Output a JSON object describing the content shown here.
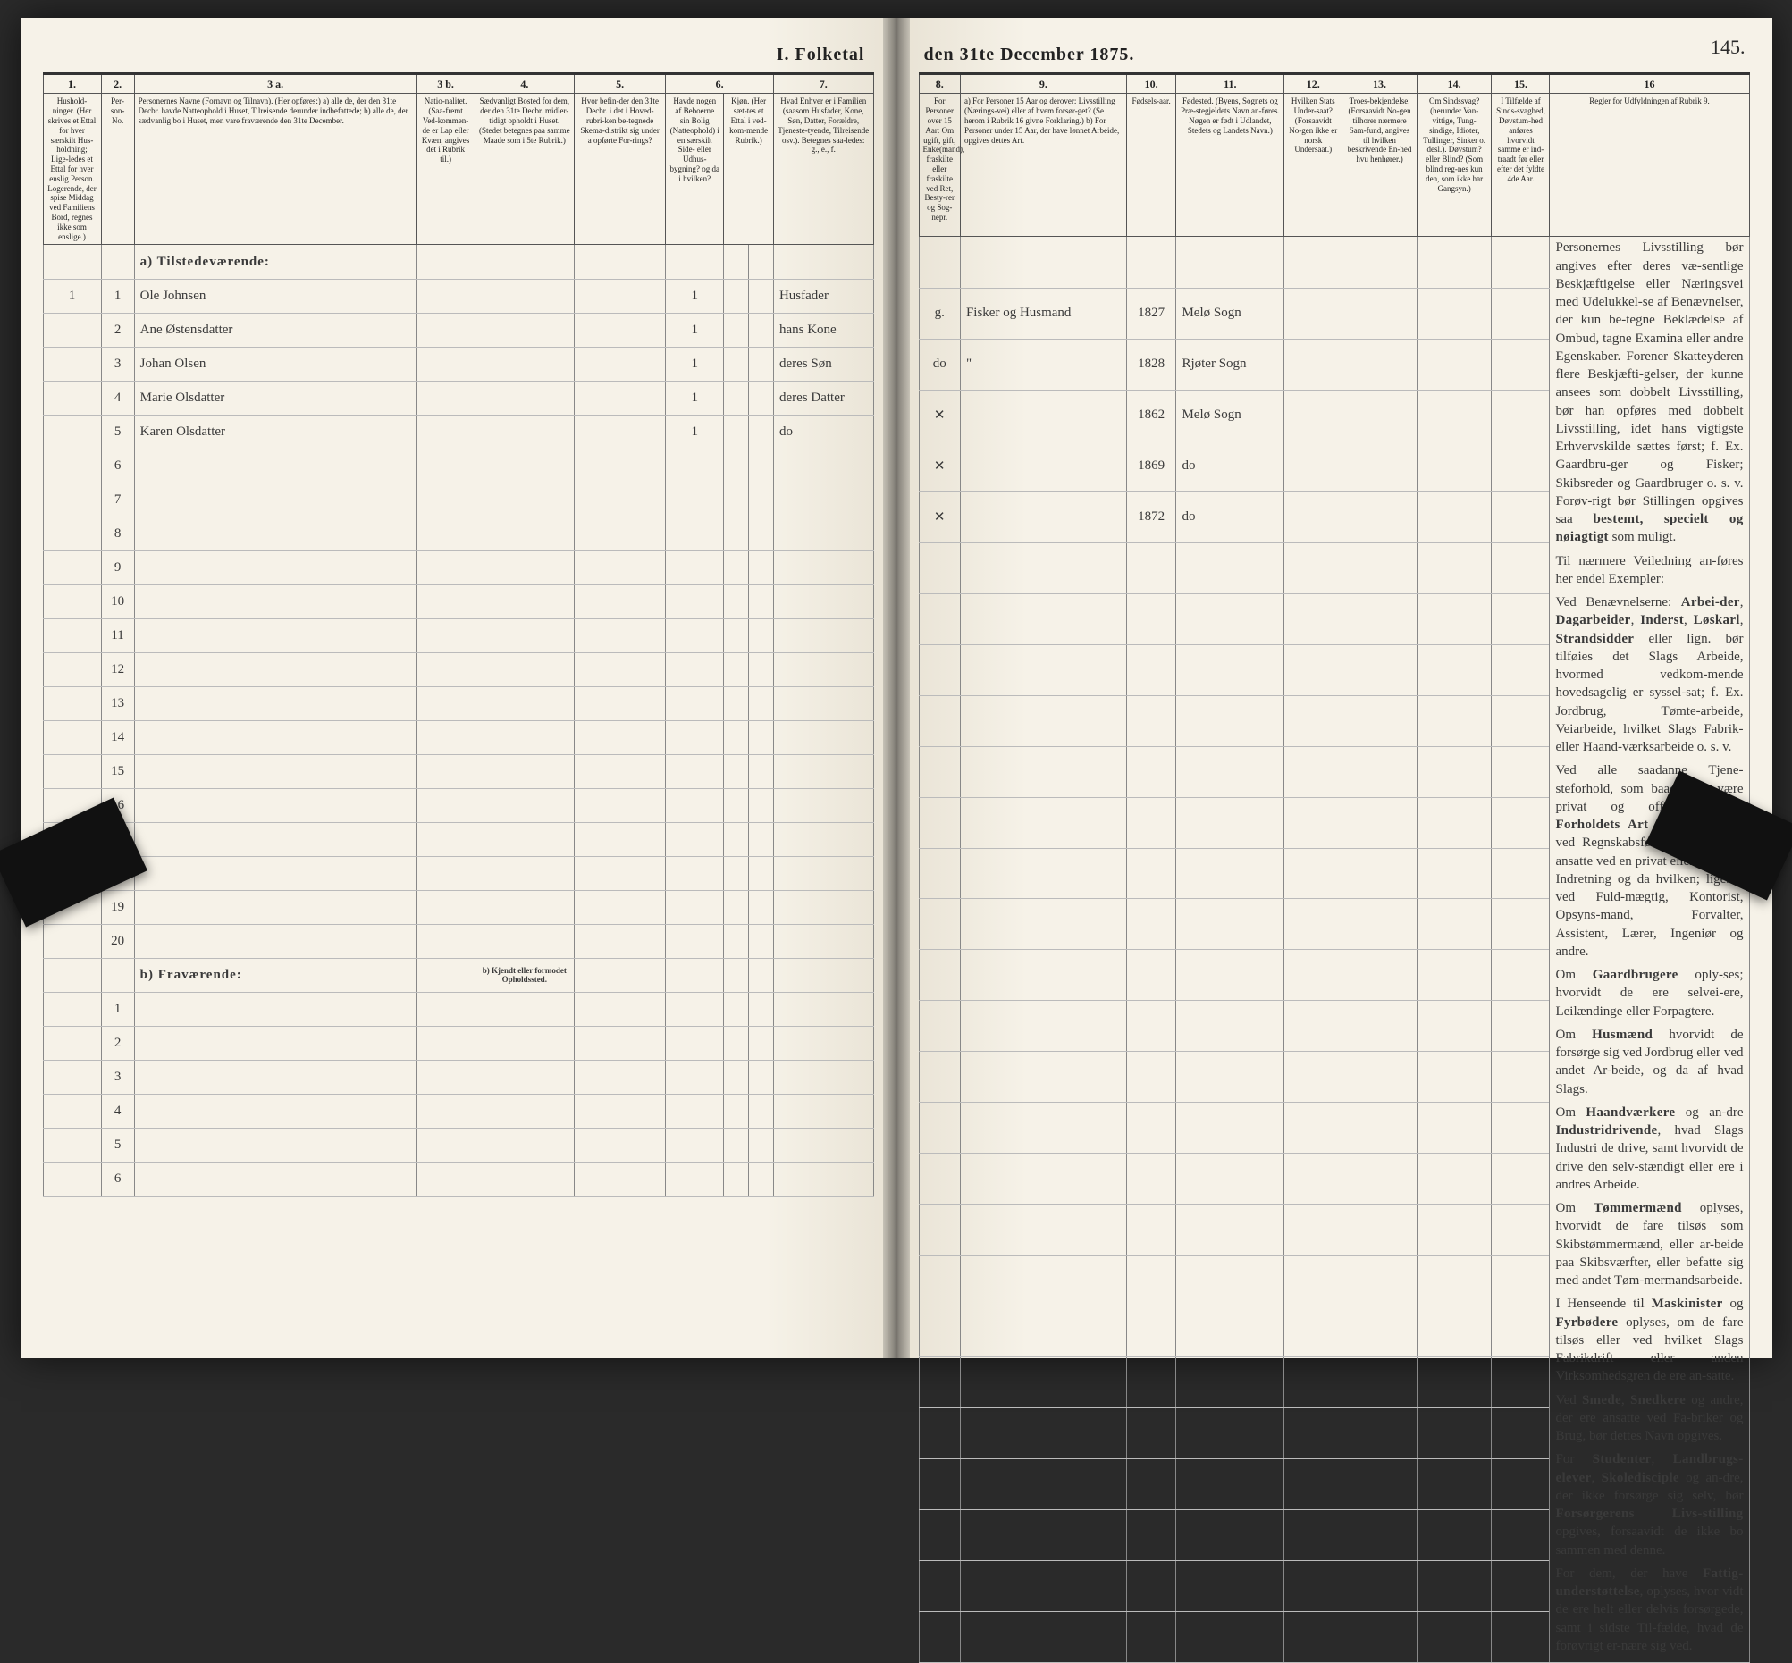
{
  "title_left": "I.  Folketal",
  "title_right": "den 31te December 1875.",
  "page_number": "145.",
  "left_columns": {
    "nums": [
      "1.",
      "2.",
      "3 a.",
      "3 b.",
      "4.",
      "5.",
      "6.",
      "7.",
      "8."
    ],
    "heads": [
      "Hushold-ninger. (Her skrives et Ettal for hver særskilt Hus-holdning; Lige-ledes et Ettal for hver enslig Person. Logerende, der spise Middag ved Familiens Bord, regnes ikke som enslige.)",
      "Per-son-No.",
      "Personernes Navne (Fornavn og Tilnavn).\n(Her opføres:)\na) alle de, der den 31te Decbr. havde Natteophold i Huset, Tilreisende derunder indbefattede;\nb) alle de, der sædvanlig bo i Huset, men vare fraværende den 31te December.",
      "Natio-nalitet. (Saa-fremt Ved-kommen-de er Lap eller Kvæn, angives det i Rubrik til.)",
      "Sædvanligt Bosted for dem, der den 31te Decbr. midler-tidigt opholdt i Huset. (Stedet betegnes paa samme Maade som i 5te Rubrik.)",
      "Hvor befin-der den 31te Decbr. i det i Hoved-rubri-ken be-tegnede Skema-distrikt sig under a opførte For-rings?",
      "Havde nogen af Beboerne sin Bolig (Natteophold) i en særskilt Side- eller Udhus-bygning? og da i hvilken?",
      "Kjøn. (Her sæt-tes et Ettal i ved-kom-mende Rubrik.)",
      "Hvad Enhver er i Familien (saasom Husfader, Kone, Søn, Datter, Forældre, Tjeneste-tyende, Tilreisende osv.). Betegnes saa-ledes: g., e., f."
    ]
  },
  "right_columns": {
    "nums": [
      "8.",
      "9.",
      "10.",
      "11.",
      "12.",
      "13.",
      "14.",
      "15.",
      "16"
    ],
    "heads": [
      "For Personer over 15 Aar: Om ugift, gift, Enke(mand), fraskilte eller fraskilte ved Ret, Besty-rer og Sog-nepr.",
      "a) For Personer 15 Aar og derover: Livsstilling (Nærings-vei) eller af hvem forsør-get? (Se herom i Rubrik 16 givne Forklaring.)\nb) For Personer under 15 Aar, der have lønnet Arbeide, opgives dettes Art.",
      "Fødsels-aar.",
      "Fødested. (Byens, Sognets og Præ-stegjeldets Navn an-føres. Nøgen er født i Udlandet, Stedets og Landets Navn.)",
      "Hvilken Stats Under-saat? (Forsaavidt No-gen ikke er norsk Undersaat.)",
      "Troes-bekjendelse. (Forsaavidt No-gen tilhorer nærmere Sam-fund, angives til hvilken beskrivende En-hed hvu henhører.)",
      "Om Sindssvag? (herunder Van-vittige, Tung-sindige, Idioter, Tullinger, Sinker o. desl.). Døvstum? eller Blind? (Som blind reg-nes kun den, som ikke har Gangsyn.)",
      "I Tilfælde af Sinds-svaghed, Døvstum-hed anføres hvorvidt samme er ind-traadt før eller efter det fyldte 4de Aar.",
      "Regler for Udfyldningen af Rubrik 9."
    ]
  },
  "section_a": "a) Tilstedeværende:",
  "section_b": "b) Fraværende:",
  "section_b_note": "b) Kjendt eller formodet Opholdssted.",
  "rows": [
    {
      "n": "1",
      "hh": "1",
      "name": "Ole Johnsen",
      "c5": "",
      "c6": "1",
      "c7": "Husfader",
      "c8": "g.",
      "c9": "Fisker og Husmand",
      "c10": "1827",
      "c11": "Melø Sogn"
    },
    {
      "n": "2",
      "hh": "",
      "name": "Ane Østensdatter",
      "c5": "",
      "c6": "1",
      "c7": "hans Kone",
      "c8": "do",
      "c9": "\"",
      "c10": "1828",
      "c11": "Rjøter Sogn"
    },
    {
      "n": "3",
      "hh": "",
      "name": "Johan Olsen",
      "c5": "",
      "c6": "1",
      "c7": "deres Søn",
      "c8": "✕",
      "c9": "",
      "c10": "1862",
      "c11": "Melø Sogn"
    },
    {
      "n": "4",
      "hh": "",
      "name": "Marie Olsdatter",
      "c5": "",
      "c6": "1",
      "c7": "deres Datter",
      "c8": "✕",
      "c9": "",
      "c10": "1869",
      "c11": "do"
    },
    {
      "n": "5",
      "hh": "",
      "name": "Karen Olsdatter",
      "c5": "",
      "c6": "1",
      "c7": "do",
      "c8": "✕",
      "c9": "",
      "c10": "1872",
      "c11": "do"
    }
  ],
  "empty_rows_a": [
    "6",
    "7",
    "8",
    "9",
    "10",
    "11",
    "12",
    "13",
    "14",
    "15",
    "16",
    "17",
    "18",
    "19",
    "20"
  ],
  "empty_rows_b": [
    "1",
    "2",
    "3",
    "4",
    "5",
    "6"
  ],
  "side_paragraphs": [
    "Personernes Livsstilling bør angives efter deres væ-sentlige Beskjæftigelse eller Næringsvei med Udelukkel-se af Benævnelser, der kun be-tegne Beklædelse af Ombud, tagne Examina eller andre Egenskaber. Forener Skattеyderen flere Beskjæfti-gelser, der kunne ansees som dobbelt Livsstilling, bør han opføres med dobbelt Livsstilling, idet hans vigtigste Erhvervskilde sættes først; f. Ex. Gaardbru-ger og Fisker; Skibsreder og Gaardbruger o. s. v. Forøv-rigt bør Stillingen opgives saa bestemt, specielt og nøiagtigt som muligt.",
    "Til nærmere Veiledning an-føres her endel Exempler:",
    "Ved Benævnelserne: Arbei-der, Dagarbeider, Inderst, Løskarl, Strandsidder eller lign. bør tilføies det Slags Arbeide, hvormed vedkom-mende hovedsagelig er syssel-sat; f. Ex. Jordbrug, Tømte-arbeide, Veiarbeide, hvilket Slags Fabrik- eller Haand-værksarbeide o. s. v.",
    "Ved alle saadanne Tjene-steforhold, som baade kan være privat og offentligt, bør Forholdets Art opgives, f. Ex. ved Regnskabsførere, om de ere ansatte ved en privat eller offentlig Indretning og da hvilken; ligesaa ved Fuld-mægtig, Kontorist, Opsyns-mand, Forvalter, Assistent, Lærer, Ingeniør og andre.",
    "Om Gaardbrugere oply-ses; hvorvidt de ere selvei-ere, Leilændinge eller Forpagtere.",
    "Om Husmænd hvorvidt de forsørge sig ved Jordbrug eller ved andet Ar-beide, og da af hvad Slags.",
    "Om Haandværkere og an-dre Industridrivende, hvad Slags Industri de drive, samt hvorvidt de drive den selv-stændigt eller ere i andres Arbeide.",
    "Om Tømmermænd oplyses, hvorvidt de fare tilsøs som Skibstømmermænd, eller ar-beide paa Skibsværfter, eller befatte sig med andet Tøm-mermandsarbeide.",
    "I Henseende til Maskinister og Fyrbødere oplyses, om de fare tilsøs eller ved hvilket Slags Fabrikdrift eller anden Virksomhedsgren de ere an-satte.",
    "Ved Smede, Snedkere og andre, der ere ansatte ved Fa-briker og Brug, bør dettes Navn opgives.",
    "For Studenter, Landbrugs-elever, Skoledisciple og an-dre, der ikke forsørge sig selv, bør Forsørgerens Livs-stilling opgives, forsaavidt de ikke bo sammen med denne.",
    "For dem, der have Fattig-understøttelse, oplyses, hvor-vidt de ere helt eller delvis forsørgede, samt i sidste Til-fælde, hvad de forøvrigt er-nære sig ved."
  ],
  "colors": {
    "paper": "#f4f0e6",
    "ink": "#222222",
    "rule": "#555555",
    "rule_light": "#bbbbbb",
    "cursive": "#2b2b2b"
  }
}
